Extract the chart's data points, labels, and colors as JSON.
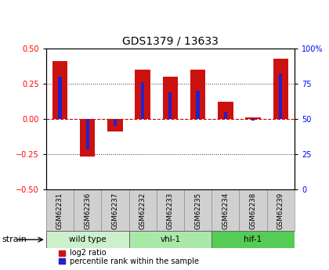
{
  "title": "GDS1379 / 13633",
  "samples": [
    "GSM62231",
    "GSM62236",
    "GSM62237",
    "GSM62232",
    "GSM62233",
    "GSM62235",
    "GSM62234",
    "GSM62238",
    "GSM62239"
  ],
  "log2_ratio": [
    0.41,
    -0.27,
    -0.09,
    0.35,
    0.3,
    0.35,
    0.12,
    0.01,
    0.43
  ],
  "percentile_rank": [
    80,
    28,
    45,
    76,
    69,
    70,
    55,
    49,
    82
  ],
  "groups": [
    {
      "label": "wild type",
      "start": 0,
      "end": 3,
      "color": "#ccf0cc"
    },
    {
      "label": "vhl-1",
      "start": 3,
      "end": 6,
      "color": "#aae8aa"
    },
    {
      "label": "hif-1",
      "start": 6,
      "end": 9,
      "color": "#55cc55"
    }
  ],
  "ylim_left": [
    -0.5,
    0.5
  ],
  "ylim_right": [
    0,
    100
  ],
  "yticks_left": [
    -0.5,
    -0.25,
    0.0,
    0.25,
    0.5
  ],
  "yticks_right": [
    0,
    25,
    50,
    75,
    100
  ],
  "bar_color_red": "#cc1111",
  "bar_color_blue": "#2222cc",
  "bar_width": 0.55,
  "blue_bar_width": 0.12,
  "zero_line_color": "#cc0000",
  "dotted_color": "#333333",
  "bg_sample_row": "#d0d0d0",
  "strain_label": "strain",
  "legend_log2": "log2 ratio",
  "legend_pct": "percentile rank within the sample"
}
